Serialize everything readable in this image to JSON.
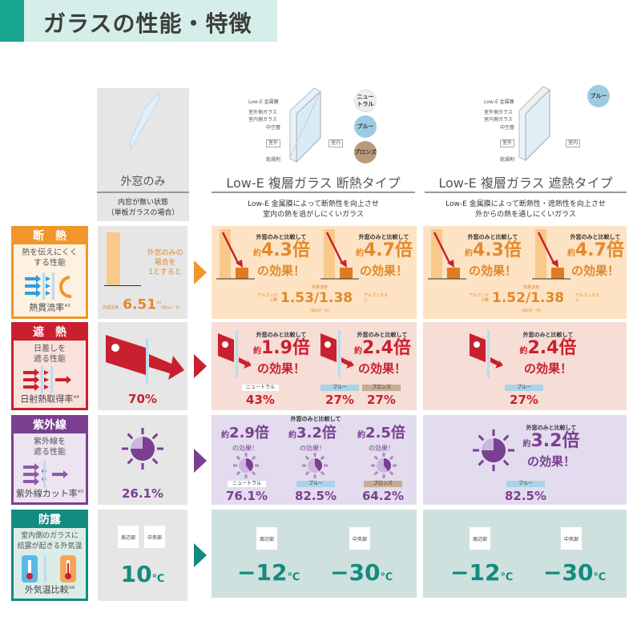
{
  "title": "ガラスの性能・特徴",
  "colors": {
    "title_accent": "#17a58d",
    "dannetsu": "#f0962a",
    "shanetsu": "#c8202f",
    "shigaisen": "#7b3f91",
    "boro": "#138b7f",
    "neutral": "#eeeeee",
    "blue": "#a8d3e8",
    "bronze": "#c5ad93"
  },
  "columns": {
    "single": {
      "name": "外窓のみ",
      "desc1": "内窓が無い状態",
      "desc2": "（単板ガラスの場合）"
    },
    "insul": {
      "name": "Low-E 複層ガラス 断熱タイプ",
      "desc1": "Low-E 金属膜によって断熱性を向上させ",
      "desc2": "室内の熱を逃がしにくいガラス",
      "color_options": [
        "ニュートラル",
        "ブルー",
        "ブロンズ"
      ]
    },
    "shield": {
      "name": "Low-E 複層ガラス 遮熱タイプ",
      "desc1": "Low-E 金属膜によって断熱性・遮熱性を向上させ",
      "desc2": "外からの熱を通しにくいガラス",
      "color_options": [
        "ブルー"
      ]
    }
  },
  "diagram": {
    "lowe": "Low-E 金属膜",
    "outer": "室外側ガラス",
    "inner": "室内側ガラス",
    "hollow": "中空層",
    "outside": "室外",
    "inside": "室内",
    "desiccant": "乾燥剤"
  },
  "rows": {
    "dannetsu": {
      "label": "断　熱",
      "desc1": "熱を伝えにくく",
      "desc2": "する性能",
      "metric": "熱貫流率",
      "note": "※3",
      "single": {
        "t1": "外窓のみの",
        "t2": "場合を",
        "t3": "1とすると",
        "metric": "熱貫流率",
        "value": "6.51",
        "note": "※3",
        "unit": "(W/㎡・K)"
      },
      "insul": {
        "effects": [
          {
            "compare": "外窓のみと比較して",
            "prefix": "約",
            "value": "4.3倍",
            "suffix": "の効果！"
          },
          {
            "compare": "外窓のみと比較して",
            "prefix": "約",
            "value": "4.7倍",
            "suffix": "の効果！"
          }
        ],
        "metric": "熱貫流率",
        "left": "アルゴンガス無",
        "value": "1.53/1.38",
        "right": "アルゴンガス入",
        "unit": "(W/㎡・K)"
      },
      "shield": {
        "effects": [
          {
            "compare": "外窓のみと比較して",
            "prefix": "約",
            "value": "4.3倍",
            "suffix": "の効果！"
          },
          {
            "compare": "外窓のみと比較して",
            "prefix": "約",
            "value": "4.7倍",
            "suffix": "の効果！"
          }
        ],
        "metric": "熱貫流率",
        "left": "アルゴンガス無",
        "value": "1.52/1.38",
        "right": "アルゴンガス入",
        "unit": "(W/㎡・K)"
      }
    },
    "shanetsu": {
      "label": "遮　熱",
      "desc1": "日差しを",
      "desc2": "遮る性能",
      "metric": "日射熱取得率",
      "note": "※4",
      "single": {
        "value": "70%"
      },
      "insul": {
        "effects": [
          {
            "compare": "外窓のみと比較して",
            "prefix": "約",
            "value": "1.9倍",
            "suffix": "の効果！"
          },
          {
            "compare": "外窓のみと比較して",
            "prefix": "約",
            "value": "2.4倍",
            "suffix": "の効果！"
          }
        ],
        "values": [
          {
            "chip": "ニュートラル",
            "value": "43%"
          },
          {
            "chip": "ブルー",
            "value": "27%"
          },
          {
            "chip": "ブロンズ",
            "value": "27%"
          }
        ]
      },
      "shield": {
        "effects": [
          {
            "compare": "外窓のみと比較して",
            "prefix": "約",
            "value": "2.4倍",
            "suffix": "の効果！"
          }
        ],
        "values": [
          {
            "chip": "ブルー",
            "value": "27%"
          }
        ]
      }
    },
    "shigaisen": {
      "label": "紫外線",
      "desc1": "紫外線を",
      "desc2": "遮る性能",
      "metric": "紫外線カット率",
      "note": "※5",
      "single": {
        "value": "26.1%"
      },
      "insul": {
        "compare": "外窓のみと比較して",
        "effects": [
          {
            "prefix": "約",
            "value": "2.9倍",
            "suffix": "の効果！"
          },
          {
            "prefix": "約",
            "value": "3.2倍",
            "suffix": "の効果！"
          },
          {
            "prefix": "約",
            "value": "2.5倍",
            "suffix": "の効果！"
          }
        ],
        "values": [
          {
            "chip": "ニュートラル",
            "value": "76.1%"
          },
          {
            "chip": "ブルー",
            "value": "82.5%"
          },
          {
            "chip": "ブロンズ",
            "value": "64.2%"
          }
        ]
      },
      "shield": {
        "effects": [
          {
            "compare": "外窓のみと比較して",
            "prefix": "約",
            "value": "3.2倍",
            "suffix": "の効果！"
          }
        ],
        "values": [
          {
            "chip": "ブルー",
            "value": "82.5%"
          }
        ]
      }
    },
    "boro": {
      "label": "防露",
      "desc1": "室内側のガラスに",
      "desc2": "結露が起きる外気温",
      "metric": "外気温比較",
      "note": "※6",
      "single": {
        "edge": "周辺部",
        "center": "中央部",
        "value": "10",
        "unit": "℃"
      },
      "insul": {
        "edge": "周辺部",
        "center": "中央部",
        "edge_value": "−12",
        "center_value": "−30",
        "unit": "℃"
      },
      "shield": {
        "edge": "周辺部",
        "center": "中央部",
        "edge_value": "−12",
        "center_value": "−30",
        "unit": "℃"
      }
    }
  }
}
